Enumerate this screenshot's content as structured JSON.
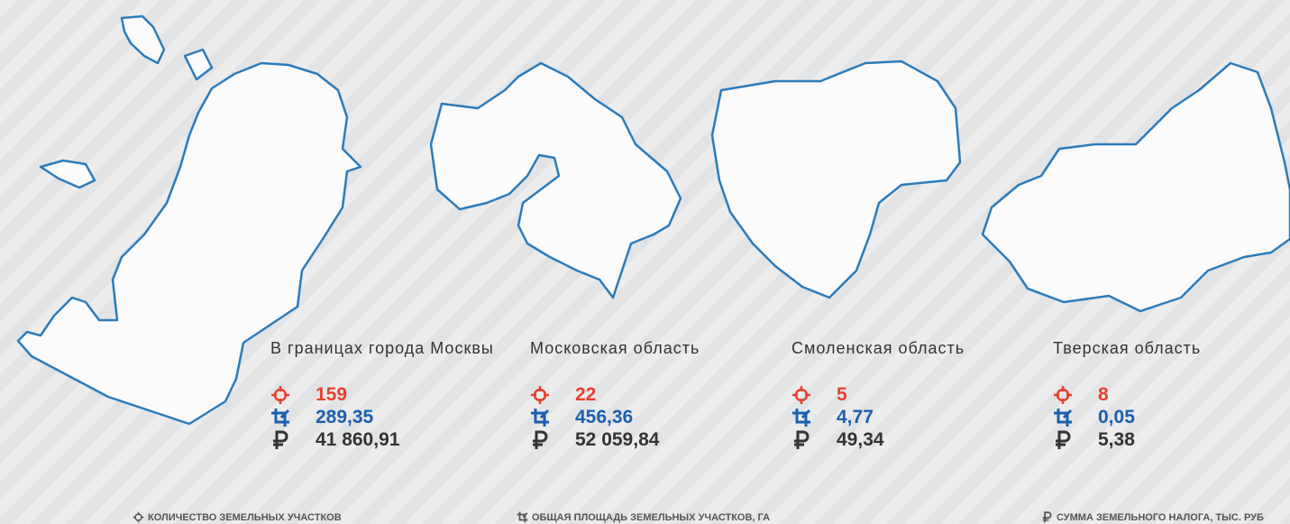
{
  "regions": [
    {
      "name": "В границах города Москвы",
      "count": "159",
      "area": "289,35",
      "tax": "41 860,91"
    },
    {
      "name": "Московская область",
      "count": "22",
      "area": "456,36",
      "tax": "52 059,84"
    },
    {
      "name": "Смоленская область",
      "count": "5",
      "area": "4,77",
      "tax": "49,34"
    },
    {
      "name": "Тверская область",
      "count": "8",
      "area": "0,05",
      "tax": "5,38"
    }
  ],
  "legend": {
    "count": "КОЛИЧЕСТВО ЗЕМЕЛЬНЫХ УЧАСТКОВ",
    "area": "ОБЩАЯ ПЛОЩАДЬ ЗЕМЕЛЬНЫХ УЧАСТКОВ, ГА",
    "tax": "СУММА ЗЕМЕЛЬНОГО НАЛОГА, ТЫС. РУБ"
  }
}
